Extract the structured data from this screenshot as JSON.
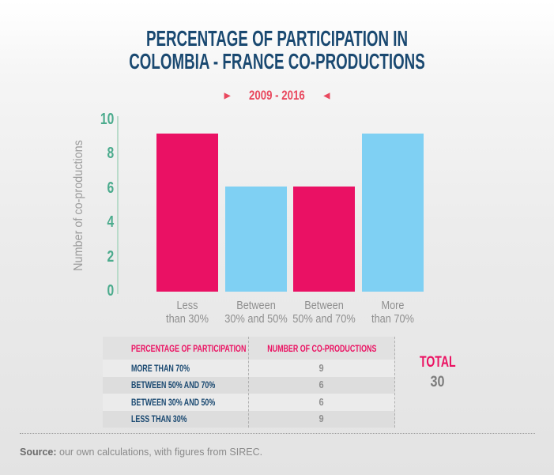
{
  "title": {
    "line1": "PERCENTAGE OF PARTICIPATION IN",
    "line2": "COLOMBIA - FRANCE CO-PRODUCTIONS"
  },
  "subtitle": {
    "text": "2009 - 2016",
    "left_arrow": "▶",
    "right_arrow": "◀"
  },
  "chart_data": {
    "type": "bar",
    "title": "Percentage of participation in Colombia - France co-productions",
    "subtitle": "2009 - 2016",
    "categories": [
      "Less than 30%",
      "Between 30% and 50%",
      "Between 50% and 70%",
      "More than 70%"
    ],
    "categories_lines": [
      [
        "Less",
        "than 30%"
      ],
      [
        "Between",
        "30% and 50%"
      ],
      [
        "Between",
        "50% and 70%"
      ],
      [
        "More",
        "than 70%"
      ]
    ],
    "values": [
      9,
      6,
      6,
      9
    ],
    "bar_colors": [
      "#ea1164",
      "#7fd0f3",
      "#ea1164",
      "#7fd0f3"
    ],
    "xlabel": "",
    "ylabel": "Number of co-productions",
    "yticks": [
      10,
      8,
      6,
      4,
      2,
      0
    ],
    "ylim": [
      0,
      10
    ],
    "grid": false,
    "legend": false
  },
  "table": {
    "headers": [
      "PERCENTAGE OF PARTICIPATION",
      "NUMBER OF CO-PRODUCTIONS"
    ],
    "rows": [
      {
        "label": "MORE THAN 70%",
        "value": 9
      },
      {
        "label": "BETWEEN 50% AND 70%",
        "value": 6
      },
      {
        "label": "BETWEEN 30% AND 50%",
        "value": 6
      },
      {
        "label": "LESS THAN 30%",
        "value": 9
      }
    ]
  },
  "total": {
    "label": "TOTAL",
    "value": 30
  },
  "source": {
    "prefix": "Source:",
    "text": " our own calculations, with figures from SIREC."
  },
  "colors": {
    "pink": "#ea1164",
    "blue": "#7fd0f3",
    "navy": "#1a4971",
    "teal": "#4bab8d",
    "axis_line": "#b9dbca",
    "gray_text": "#8f8f8f"
  }
}
